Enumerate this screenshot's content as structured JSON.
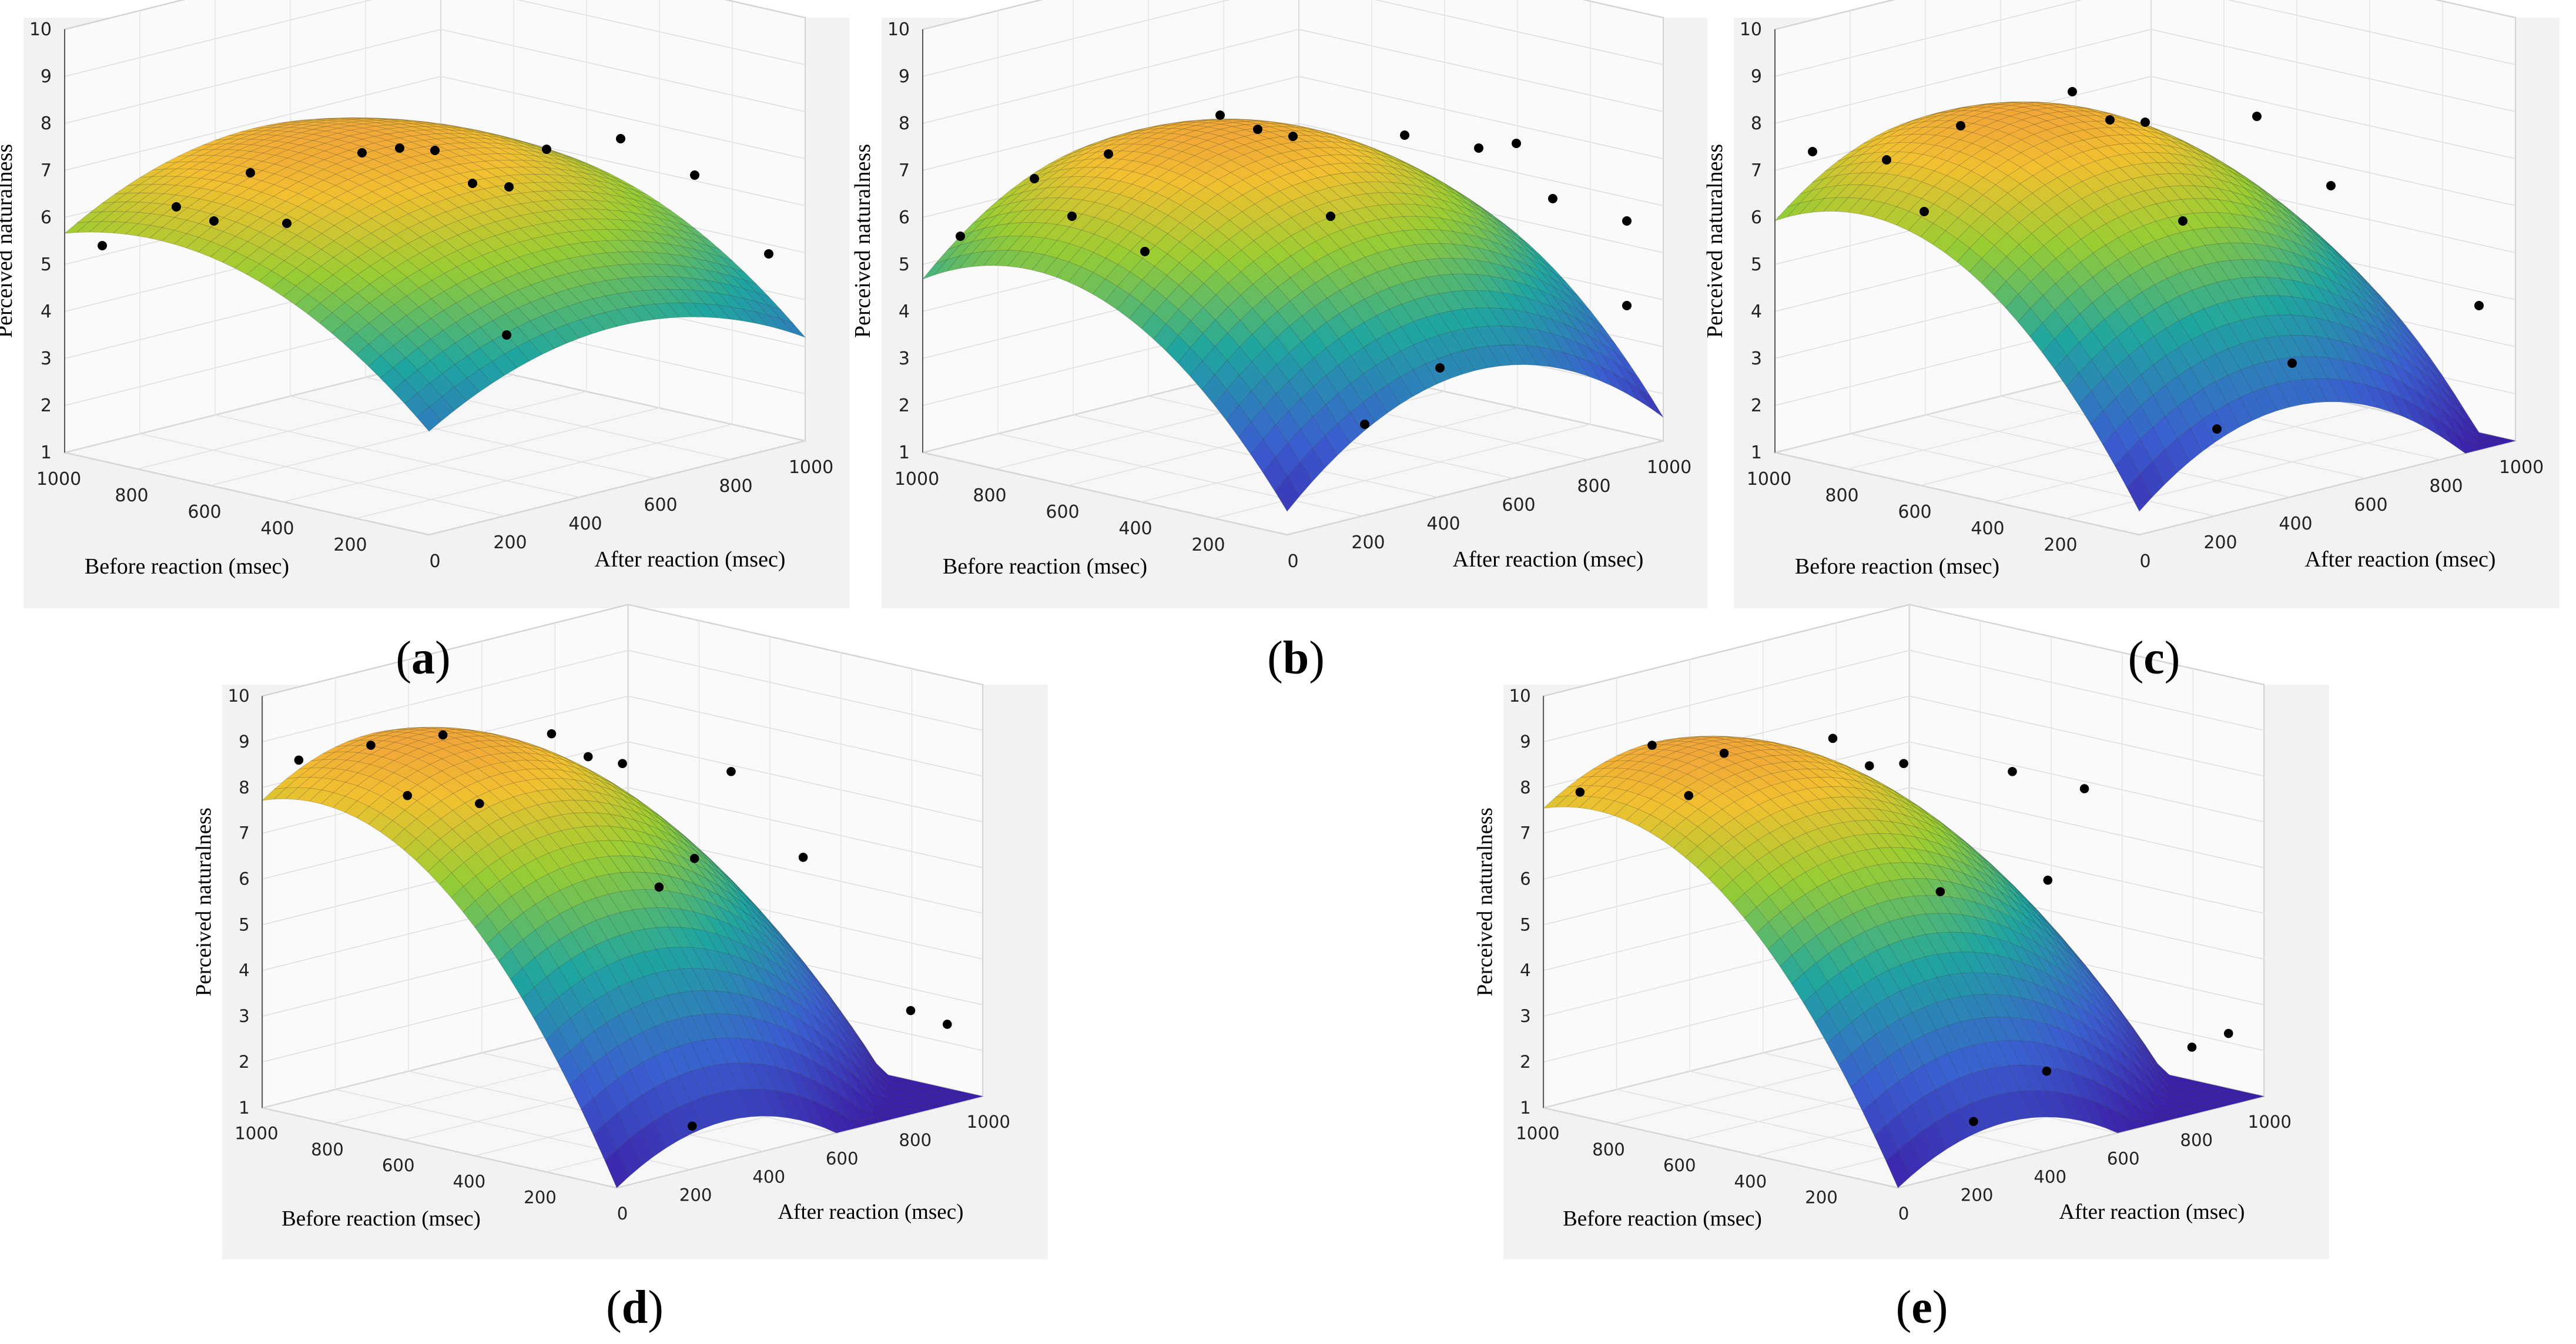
{
  "figure": {
    "panels": [
      {
        "id": "a",
        "caption": "a"
      },
      {
        "id": "b",
        "caption": "b"
      },
      {
        "id": "c",
        "caption": "c"
      },
      {
        "id": "d",
        "caption": "d"
      },
      {
        "id": "e",
        "caption": "e"
      }
    ],
    "colors": {
      "surface_low": "#3b2fa8",
      "surface_mid": "#1fa6a0",
      "surface_high": "#f2a93b",
      "points": "#000000",
      "background": "#f2f2f2"
    }
  },
  "chart_data": [
    {
      "type": "surface3d",
      "panel": "a",
      "xlabel": "Before reaction (msec)",
      "ylabel": "After reaction (msec)",
      "zlabel": "Perceived naturalness",
      "x_ticks": [
        "1000",
        "800",
        "600",
        "400",
        "200"
      ],
      "y_ticks": [
        "0",
        "200",
        "400",
        "600",
        "800",
        "1000"
      ],
      "z_ticks": [
        "1",
        "2",
        "3",
        "4",
        "5",
        "6",
        "7",
        "8",
        "9",
        "10"
      ],
      "xlim": [
        0,
        1000
      ],
      "ylim": [
        0,
        1000
      ],
      "zlim": [
        1,
        10
      ],
      "surface": {
        "peak": 7.2,
        "peak_before": 750,
        "peak_after": 500,
        "min_corner": 3.2
      },
      "points": [
        {
          "before": 1000,
          "after": 100,
          "z": 5.2
        },
        {
          "before": 900,
          "after": 200,
          "z": 6.0
        },
        {
          "before": 900,
          "after": 300,
          "z": 5.5
        },
        {
          "before": 800,
          "after": 300,
          "z": 6.7
        },
        {
          "before": 700,
          "after": 300,
          "z": 5.8
        },
        {
          "before": 700,
          "after": 500,
          "z": 6.9
        },
        {
          "before": 700,
          "after": 600,
          "z": 6.8
        },
        {
          "before": 500,
          "after": 500,
          "z": 7.3
        },
        {
          "before": 500,
          "after": 600,
          "z": 6.4
        },
        {
          "before": 400,
          "after": 700,
          "z": 7.1
        },
        {
          "before": 400,
          "after": 600,
          "z": 6.5
        },
        {
          "before": 200,
          "after": 400,
          "z": 4.1
        },
        {
          "before": 300,
          "after": 800,
          "z": 7.3
        },
        {
          "before": 200,
          "after": 900,
          "z": 6.5
        },
        {
          "before": 100,
          "after": 1000,
          "z": 4.8
        }
      ]
    },
    {
      "type": "surface3d",
      "panel": "b",
      "xlabel": "Before reaction (msec)",
      "ylabel": "After reaction (msec)",
      "zlabel": "Perceived naturalness",
      "x_ticks": [
        "1000",
        "800",
        "600",
        "400",
        "200"
      ],
      "y_ticks": [
        "0",
        "200",
        "400",
        "600",
        "800",
        "1000"
      ],
      "z_ticks": [
        "1",
        "2",
        "3",
        "4",
        "5",
        "6",
        "7",
        "8",
        "9",
        "10"
      ],
      "xlim": [
        0,
        1000
      ],
      "ylim": [
        0,
        1000
      ],
      "zlim": [
        1,
        10
      ],
      "surface": {
        "peak": 7.4,
        "peak_before": 700,
        "peak_after": 500,
        "min_corner": 1.5
      },
      "points": [
        {
          "before": 1000,
          "after": 100,
          "z": 5.4
        },
        {
          "before": 900,
          "after": 200,
          "z": 6.6
        },
        {
          "before": 900,
          "after": 300,
          "z": 5.6
        },
        {
          "before": 800,
          "after": 300,
          "z": 7.1
        },
        {
          "before": 700,
          "after": 300,
          "z": 5.2
        },
        {
          "before": 700,
          "after": 500,
          "z": 7.7
        },
        {
          "before": 700,
          "after": 600,
          "z": 7.2
        },
        {
          "before": 500,
          "after": 500,
          "z": 7.6
        },
        {
          "before": 500,
          "after": 600,
          "z": 5.7
        },
        {
          "before": 400,
          "after": 700,
          "z": 7.4
        },
        {
          "before": 300,
          "after": 800,
          "z": 7.1
        },
        {
          "before": 300,
          "after": 900,
          "z": 7.0
        },
        {
          "before": 200,
          "after": 400,
          "z": 2.2
        },
        {
          "before": 200,
          "after": 600,
          "z": 3.0
        },
        {
          "before": 200,
          "after": 900,
          "z": 6.0
        },
        {
          "before": 100,
          "after": 1000,
          "z": 5.5
        },
        {
          "before": 100,
          "after": 1000,
          "z": 3.7
        }
      ]
    },
    {
      "type": "surface3d",
      "panel": "c",
      "xlabel": "Before reaction (msec)",
      "ylabel": "After reaction (msec)",
      "zlabel": "Perceived naturalness",
      "x_ticks": [
        "1000",
        "800",
        "600",
        "400",
        "200"
      ],
      "y_ticks": [
        "0",
        "200",
        "400",
        "600",
        "800",
        "1000"
      ],
      "z_ticks": [
        "1",
        "2",
        "3",
        "4",
        "5",
        "6",
        "7",
        "8",
        "9",
        "10"
      ],
      "xlim": [
        0,
        1000
      ],
      "ylim": [
        0,
        1000
      ],
      "zlim": [
        1,
        10
      ],
      "surface": {
        "peak": 7.9,
        "peak_before": 750,
        "peak_after": 400,
        "min_corner": 1.5
      },
      "points": [
        {
          "before": 1000,
          "after": 100,
          "z": 7.2
        },
        {
          "before": 900,
          "after": 200,
          "z": 7.0
        },
        {
          "before": 900,
          "after": 300,
          "z": 5.7
        },
        {
          "before": 800,
          "after": 300,
          "z": 7.7
        },
        {
          "before": 700,
          "after": 500,
          "z": 8.2
        },
        {
          "before": 700,
          "after": 600,
          "z": 7.4
        },
        {
          "before": 500,
          "after": 500,
          "z": 7.9
        },
        {
          "before": 500,
          "after": 600,
          "z": 5.6
        },
        {
          "before": 400,
          "after": 700,
          "z": 7.8
        },
        {
          "before": 300,
          "after": 800,
          "z": 6.3
        },
        {
          "before": 200,
          "after": 400,
          "z": 2.1
        },
        {
          "before": 200,
          "after": 600,
          "z": 3.1
        },
        {
          "before": 100,
          "after": 1000,
          "z": 3.7
        }
      ]
    },
    {
      "type": "surface3d",
      "panel": "d",
      "xlabel": "Before reaction (msec)",
      "ylabel": "After reaction (msec)",
      "zlabel": "Perceived naturalness",
      "x_ticks": [
        "1000",
        "800",
        "600",
        "400",
        "200"
      ],
      "y_ticks": [
        "0",
        "200",
        "400",
        "600",
        "800",
        "1000"
      ],
      "z_ticks": [
        "1",
        "2",
        "3",
        "4",
        "5",
        "6",
        "7",
        "8",
        "9",
        "10"
      ],
      "xlim": [
        0,
        1000
      ],
      "ylim": [
        0,
        1000
      ],
      "zlim": [
        1,
        10
      ],
      "surface": {
        "peak": 8.8,
        "peak_before": 850,
        "peak_after": 300,
        "min_corner": 1.0
      },
      "points": [
        {
          "before": 1000,
          "after": 100,
          "z": 8.4
        },
        {
          "before": 900,
          "after": 200,
          "z": 8.7
        },
        {
          "before": 900,
          "after": 300,
          "z": 7.4
        },
        {
          "before": 800,
          "after": 300,
          "z": 8.9
        },
        {
          "before": 800,
          "after": 400,
          "z": 7.2
        },
        {
          "before": 700,
          "after": 500,
          "z": 8.7
        },
        {
          "before": 700,
          "after": 600,
          "z": 8.0
        },
        {
          "before": 500,
          "after": 500,
          "z": 8.4
        },
        {
          "before": 500,
          "after": 600,
          "z": 5.5
        },
        {
          "before": 400,
          "after": 700,
          "z": 8.0
        },
        {
          "before": 400,
          "after": 600,
          "z": 6.3
        },
        {
          "before": 300,
          "after": 800,
          "z": 6.1
        },
        {
          "before": 200,
          "after": 400,
          "z": 1.2
        },
        {
          "before": 100,
          "after": 900,
          "z": 2.9
        },
        {
          "before": 100,
          "after": 1000,
          "z": 2.4
        }
      ]
    },
    {
      "type": "surface3d",
      "panel": "e",
      "xlabel": "Before reaction (msec)",
      "ylabel": "After reaction (msec)",
      "zlabel": "Perceived naturalness",
      "x_ticks": [
        "1000",
        "800",
        "600",
        "400",
        "200"
      ],
      "y_ticks": [
        "0",
        "200",
        "400",
        "600",
        "800",
        "1000"
      ],
      "z_ticks": [
        "1",
        "2",
        "3",
        "4",
        "5",
        "6",
        "7",
        "8",
        "9",
        "10"
      ],
      "xlim": [
        0,
        1000
      ],
      "ylim": [
        0,
        1000
      ],
      "zlim": [
        1,
        10
      ],
      "surface": {
        "peak": 8.6,
        "peak_before": 850,
        "peak_after": 300,
        "min_corner": 1.0
      },
      "points": [
        {
          "before": 1000,
          "after": 100,
          "z": 7.7
        },
        {
          "before": 900,
          "after": 200,
          "z": 8.7
        },
        {
          "before": 900,
          "after": 300,
          "z": 7.4
        },
        {
          "before": 800,
          "after": 300,
          "z": 8.5
        },
        {
          "before": 700,
          "after": 500,
          "z": 8.6
        },
        {
          "before": 700,
          "after": 600,
          "z": 7.8
        },
        {
          "before": 500,
          "after": 500,
          "z": 8.4
        },
        {
          "before": 500,
          "after": 600,
          "z": 5.4
        },
        {
          "before": 400,
          "after": 700,
          "z": 8.0
        },
        {
          "before": 300,
          "after": 800,
          "z": 7.6
        },
        {
          "before": 300,
          "after": 700,
          "z": 5.8
        },
        {
          "before": 200,
          "after": 400,
          "z": 1.3
        },
        {
          "before": 200,
          "after": 600,
          "z": 2.0
        },
        {
          "before": 100,
          "after": 900,
          "z": 2.1
        },
        {
          "before": 100,
          "after": 1000,
          "z": 2.2
        }
      ]
    }
  ]
}
